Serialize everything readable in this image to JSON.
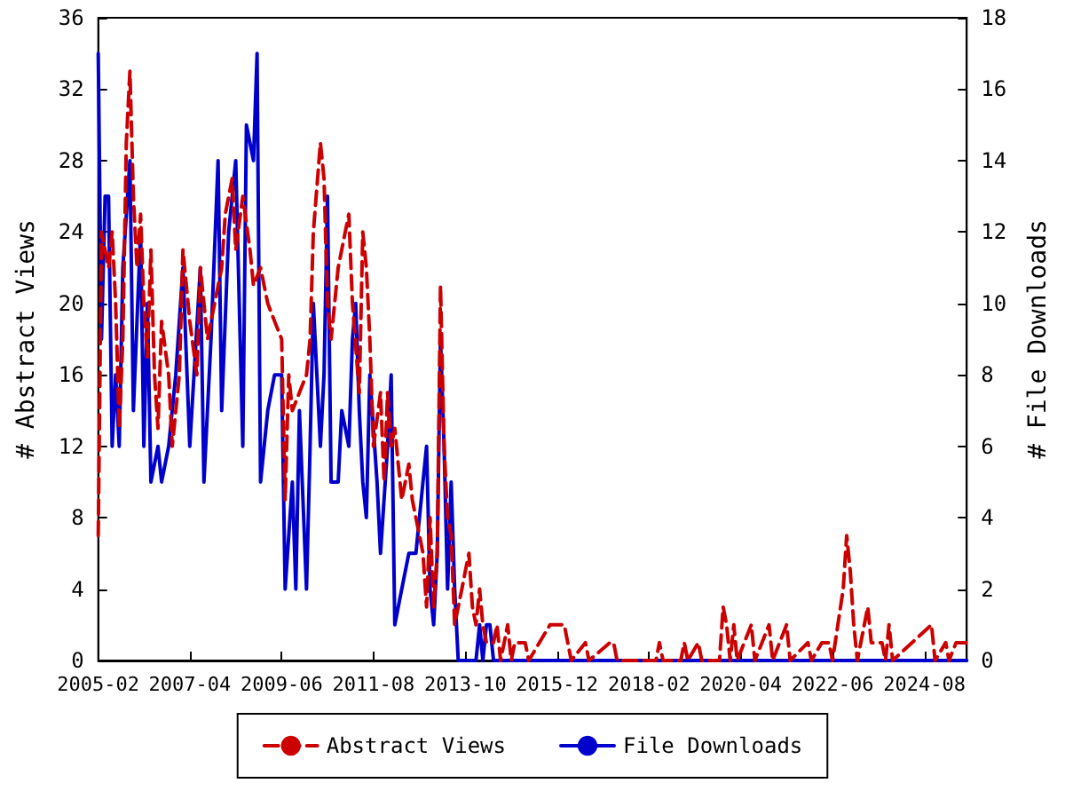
{
  "chart_data": {
    "type": "line",
    "ylabel": "# Abstract Views",
    "y2label": "# File Downloads",
    "xlim": [
      "2005-02",
      "2025-08"
    ],
    "xticks": [
      "2005-02",
      "2007-04",
      "2009-06",
      "2011-08",
      "2013-10",
      "2015-12",
      "2018-02",
      "2020-04",
      "2022-06",
      "2024-08"
    ],
    "ylim": [
      0,
      36
    ],
    "yticks": [
      0,
      4,
      8,
      12,
      16,
      20,
      24,
      28,
      32,
      36
    ],
    "y2lim": [
      0,
      18
    ],
    "y2ticks": [
      0,
      2,
      4,
      6,
      8,
      10,
      12,
      14,
      16,
      18
    ],
    "grid": false,
    "legend": "bottom",
    "marker": "none",
    "series": [
      {
        "name": "Abstract Views",
        "color": "#cc0000",
        "line_style": "dashed",
        "x": [
          "2005-02",
          "2005-03",
          "2005-05",
          "2005-06",
          "2005-07",
          "2005-08",
          "2005-09",
          "2005-10",
          "2005-11",
          "2005-12",
          "2006-01",
          "2006-02",
          "2006-03",
          "2006-04",
          "2006-05",
          "2006-06",
          "2006-07",
          "2006-08",
          "2006-10",
          "2006-11",
          "2007-01",
          "2007-02",
          "2007-04",
          "2007-06",
          "2007-07",
          "2007-09",
          "2007-11",
          "2008-01",
          "2008-02",
          "2008-04",
          "2008-05",
          "2008-07",
          "2008-09",
          "2008-10",
          "2008-12",
          "2009-02",
          "2009-04",
          "2009-06",
          "2009-07",
          "2009-08",
          "2009-09",
          "2009-11",
          "2010-01",
          "2010-02",
          "2010-03",
          "2010-05",
          "2010-06",
          "2010-07",
          "2010-08",
          "2010-10",
          "2010-12",
          "2011-01",
          "2011-02",
          "2011-04",
          "2011-05",
          "2011-06",
          "2011-07",
          "2011-08",
          "2011-10",
          "2011-11",
          "2011-12",
          "2012-01",
          "2012-02",
          "2012-04",
          "2012-06",
          "2012-07",
          "2012-09",
          "2012-10",
          "2012-11",
          "2012-12",
          "2013-01",
          "2013-02",
          "2013-03",
          "2013-04",
          "2013-05",
          "2013-06",
          "2013-07",
          "2013-09",
          "2013-10",
          "2013-11",
          "2013-12",
          "2014-01",
          "2014-02",
          "2014-03",
          "2014-04",
          "2014-06",
          "2014-07",
          "2014-08",
          "2014-09",
          "2014-10",
          "2014-11",
          "2014-12",
          "2015-02",
          "2015-03",
          "2015-04",
          "2015-10",
          "2015-12",
          "2016-02",
          "2016-04",
          "2016-08",
          "2016-09",
          "2017-03",
          "2017-04",
          "2017-05",
          "2018-04",
          "2018-05",
          "2018-06",
          "2018-11",
          "2018-12",
          "2019-01",
          "2019-04",
          "2019-05",
          "2019-10",
          "2019-11",
          "2019-12",
          "2020-01",
          "2020-02",
          "2020-03",
          "2020-07",
          "2020-08",
          "2020-12",
          "2021-01",
          "2021-05",
          "2021-06",
          "2021-11",
          "2021-12",
          "2022-03",
          "2022-05",
          "2022-06",
          "2022-09",
          "2022-10",
          "2022-11",
          "2022-12",
          "2023-01",
          "2023-04",
          "2023-05",
          "2023-08",
          "2023-09",
          "2023-10",
          "2023-11",
          "2024-10",
          "2024-11",
          "2025-02",
          "2025-03",
          "2025-05",
          "2025-07",
          "2025-08"
        ],
        "values": [
          7,
          24,
          22,
          24,
          20,
          13,
          18,
          29,
          33,
          26,
          22,
          25,
          20,
          17,
          23,
          16,
          13,
          19,
          16,
          12,
          16,
          23,
          19,
          16,
          22,
          18,
          20,
          22,
          25,
          27,
          23,
          26,
          23,
          21,
          22,
          20,
          19,
          18,
          9,
          16,
          14,
          15,
          16,
          18,
          24,
          29,
          27,
          20,
          18,
          22,
          24,
          25,
          20,
          15,
          24,
          22,
          18,
          12,
          15,
          10,
          15,
          12,
          13,
          9,
          11,
          9,
          7,
          6,
          3,
          8,
          3,
          6,
          21,
          12,
          8,
          7,
          2,
          4,
          5,
          6,
          3,
          2,
          4,
          2,
          1,
          1,
          2,
          0,
          1,
          2,
          0,
          1,
          1,
          1,
          0,
          2,
          2,
          2,
          0,
          1,
          0,
          1,
          1,
          0,
          0,
          1,
          0,
          0,
          1,
          0,
          1,
          0,
          0,
          3,
          2,
          0,
          2,
          0,
          2,
          0,
          2,
          0,
          2,
          0,
          1,
          0,
          1,
          1,
          0,
          4,
          7,
          5,
          2,
          0,
          3,
          1,
          1,
          0,
          2,
          0,
          2,
          0,
          1,
          0,
          1,
          1,
          1
        ]
      },
      {
        "name": "File Downloads",
        "color": "#0000cc",
        "line_style": "solid",
        "axis": "y2",
        "x": [
          "2005-02",
          "2005-03",
          "2005-04",
          "2005-05",
          "2005-06",
          "2005-07",
          "2005-08",
          "2005-09",
          "2005-11",
          "2005-12",
          "2006-02",
          "2006-03",
          "2006-04",
          "2006-05",
          "2006-07",
          "2006-08",
          "2006-10",
          "2006-12",
          "2007-02",
          "2007-04",
          "2007-07",
          "2007-08",
          "2007-10",
          "2007-12",
          "2008-01",
          "2008-03",
          "2008-05",
          "2008-07",
          "2008-08",
          "2008-10",
          "2008-11",
          "2008-12",
          "2009-02",
          "2009-04",
          "2009-06",
          "2009-07",
          "2009-09",
          "2009-10",
          "2009-11",
          "2010-01",
          "2010-02",
          "2010-03",
          "2010-05",
          "2010-06",
          "2010-07",
          "2010-08",
          "2010-10",
          "2010-11",
          "2011-01",
          "2011-02",
          "2011-03",
          "2011-04",
          "2011-05",
          "2011-06",
          "2011-07",
          "2011-09",
          "2011-10",
          "2011-12",
          "2012-01",
          "2012-02",
          "2012-04",
          "2012-06",
          "2012-08",
          "2012-10",
          "2012-11",
          "2012-12",
          "2013-01",
          "2013-02",
          "2013-03",
          "2013-04",
          "2013-05",
          "2013-06",
          "2013-07",
          "2013-08",
          "2014-01",
          "2014-02",
          "2014-03",
          "2014-04",
          "2014-05",
          "2014-06",
          "2025-08"
        ],
        "values": [
          17,
          9,
          13,
          13,
          6,
          8,
          6,
          11,
          14,
          7,
          12,
          6,
          10,
          5,
          6,
          5,
          6,
          8,
          11,
          6,
          11,
          5,
          9,
          14,
          7,
          12,
          14,
          6,
          15,
          14,
          17,
          5,
          7,
          8,
          8,
          2,
          5,
          2,
          7,
          2,
          6,
          10,
          6,
          8,
          13,
          5,
          5,
          7,
          6,
          9,
          10,
          7,
          5,
          4,
          8,
          5,
          3,
          6,
          8,
          1,
          2,
          3,
          3,
          5,
          6,
          2,
          1,
          3,
          9,
          6,
          2,
          5,
          2,
          0,
          0,
          1,
          0,
          1,
          1,
          0,
          0
        ]
      }
    ]
  }
}
